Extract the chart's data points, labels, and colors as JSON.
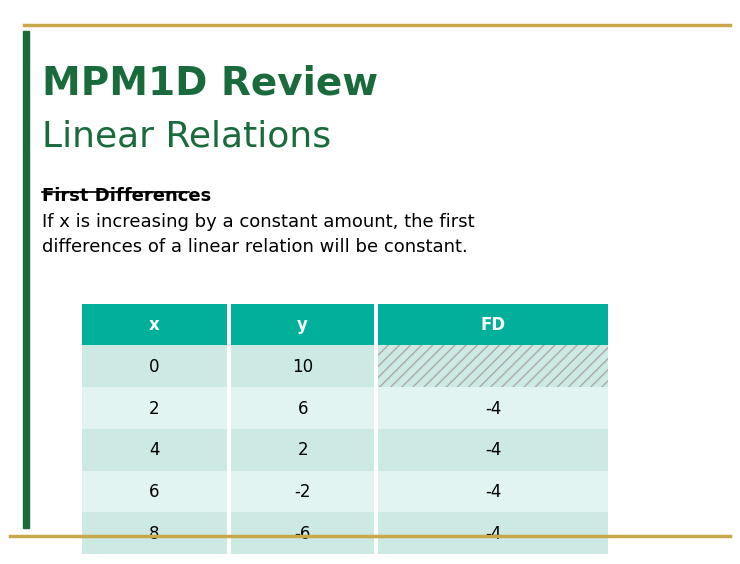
{
  "title_line1": "MPM1D Review",
  "title_line2": "Linear Relations",
  "title_color": "#1a6b3c",
  "section_heading": "First Differences",
  "body_text": "If x is increasing by a constant amount, the first\ndifferences of a linear relation will be constant.",
  "table_headers": [
    "x",
    "y",
    "FD"
  ],
  "table_data": [
    [
      "0",
      "10",
      null
    ],
    [
      "2",
      "6",
      "-4"
    ],
    [
      "4",
      "2",
      "-4"
    ],
    [
      "6",
      "-2",
      "-4"
    ],
    [
      "8",
      "-6",
      "-4"
    ]
  ],
  "header_bg": "#00b09b",
  "header_text_color": "#ffffff",
  "row_bg_even": "#cce9e3",
  "row_bg_odd": "#e2f4f1",
  "hatch_color": "#aaaaaa",
  "background_color": "#ffffff",
  "left_bar_color": "#1a6b3c",
  "top_line_color": "#c8a84b",
  "bottom_line_color": "#c8a84b"
}
